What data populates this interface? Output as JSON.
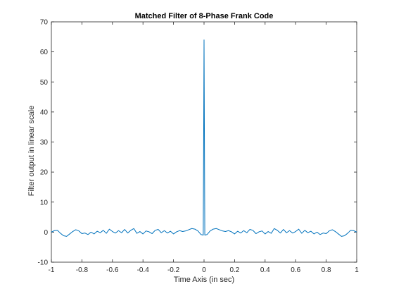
{
  "chart_data": {
    "type": "line",
    "title": "Matched Filter of 8-Phase Frank Code",
    "xlabel": "Time Axis (in sec)",
    "ylabel": "Filter output in linear scale",
    "xlim": [
      -1,
      1
    ],
    "ylim": [
      -10,
      70
    ],
    "xticks": [
      "-1",
      "-0.8",
      "-0.6",
      "-0.4",
      "-0.2",
      "0",
      "0.2",
      "0.4",
      "0.6",
      "0.8",
      "1"
    ],
    "yticks": [
      "-10",
      "0",
      "10",
      "20",
      "30",
      "40",
      "50",
      "60",
      "70"
    ],
    "grid": false,
    "line_color": "#0072BD",
    "series": [
      {
        "x": [
          -1.0,
          -0.98,
          -0.96,
          -0.94,
          -0.92,
          -0.9,
          -0.88,
          -0.86,
          -0.84,
          -0.82,
          -0.8,
          -0.78,
          -0.76,
          -0.74,
          -0.72,
          -0.7,
          -0.68,
          -0.66,
          -0.64,
          -0.62,
          -0.6,
          -0.58,
          -0.56,
          -0.54,
          -0.52,
          -0.5,
          -0.48,
          -0.46,
          -0.44,
          -0.42,
          -0.4,
          -0.38,
          -0.36,
          -0.34,
          -0.32,
          -0.3,
          -0.28,
          -0.26,
          -0.24,
          -0.22,
          -0.2,
          -0.18,
          -0.16,
          -0.14,
          -0.12,
          -0.1,
          -0.08,
          -0.06,
          -0.04,
          -0.02,
          -0.005,
          0.0,
          0.005,
          0.02,
          0.04,
          0.06,
          0.08,
          0.1,
          0.12,
          0.14,
          0.16,
          0.18,
          0.2,
          0.22,
          0.24,
          0.26,
          0.28,
          0.3,
          0.32,
          0.34,
          0.36,
          0.38,
          0.4,
          0.42,
          0.44,
          0.46,
          0.48,
          0.5,
          0.52,
          0.54,
          0.56,
          0.58,
          0.6,
          0.62,
          0.64,
          0.66,
          0.68,
          0.7,
          0.72,
          0.74,
          0.76,
          0.78,
          0.8,
          0.82,
          0.84,
          0.86,
          0.88,
          0.9,
          0.92,
          0.94,
          0.96,
          0.98,
          1.0
        ],
        "y": [
          0.0,
          0.5,
          0.6,
          -0.4,
          -1.2,
          -1.4,
          -0.6,
          0.2,
          0.8,
          0.4,
          -0.5,
          -0.3,
          -0.8,
          0.0,
          -0.6,
          0.3,
          -0.2,
          0.6,
          -0.4,
          1.0,
          0.2,
          -0.3,
          0.5,
          -0.2,
          0.9,
          -0.3,
          0.6,
          1.2,
          -0.4,
          0.2,
          -0.6,
          0.4,
          0.1,
          -0.5,
          0.6,
          0.9,
          -0.2,
          0.5,
          -0.3,
          0.3,
          -0.6,
          0.1,
          0.5,
          0.2,
          0.4,
          0.8,
          1.2,
          1.0,
          0.4,
          -0.8,
          -1.0,
          64.0,
          -1.0,
          -0.8,
          0.4,
          1.0,
          1.2,
          0.8,
          0.4,
          0.2,
          0.5,
          0.1,
          -0.6,
          0.3,
          -0.3,
          0.5,
          -0.2,
          0.9,
          0.6,
          -0.5,
          0.1,
          0.4,
          -0.6,
          0.2,
          -0.4,
          1.2,
          0.6,
          -0.3,
          0.9,
          -0.2,
          0.5,
          -0.3,
          0.2,
          1.0,
          -0.4,
          0.6,
          -0.2,
          0.3,
          -0.6,
          0.0,
          -0.8,
          -0.3,
          -0.5,
          0.4,
          0.8,
          0.2,
          -0.6,
          -1.4,
          -1.2,
          -0.4,
          0.6,
          0.5,
          0.0
        ]
      }
    ]
  }
}
